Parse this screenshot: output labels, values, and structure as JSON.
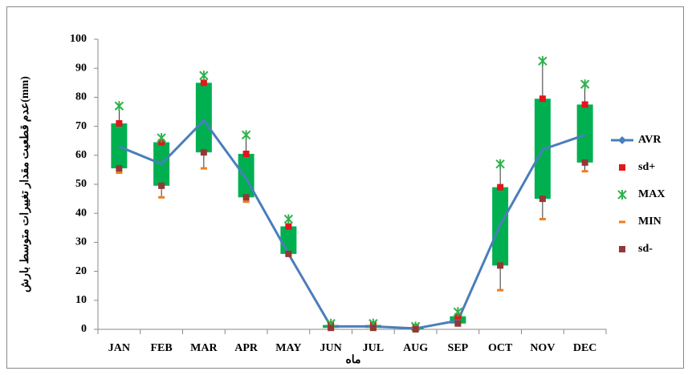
{
  "chart_data": {
    "type": "stock",
    "x_label": "ماه",
    "y_label": "عدم قطعیت مقدار تغییرات متوسط بارش(mm)",
    "categories": [
      "JAN",
      "FEB",
      "MAR",
      "APR",
      "MAY",
      "JUN",
      "JUL",
      "AUG",
      "SEP",
      "OCT",
      "NOV",
      "DEC"
    ],
    "ylim": [
      0,
      100
    ],
    "yticks": [
      0,
      10,
      20,
      30,
      40,
      50,
      60,
      70,
      80,
      90,
      100
    ],
    "grid": false,
    "box_color": "#00b050",
    "series": [
      {
        "name": "AVR",
        "color": "#4a7ebb",
        "marker": "line",
        "values": [
          63,
          57,
          72,
          52,
          26,
          1,
          1,
          0.3,
          3,
          36,
          62,
          67
        ]
      },
      {
        "name": "sd+",
        "color": "#e3161a",
        "marker": "square",
        "values": [
          71,
          64.5,
          85,
          60.5,
          35.5,
          1.5,
          1.5,
          0.8,
          4.5,
          49,
          79.5,
          77.5
        ]
      },
      {
        "name": "MAX",
        "color": "#2db34a",
        "marker": "asterisk",
        "values": [
          77,
          66,
          87.5,
          67,
          38,
          2,
          2,
          1,
          6,
          57,
          92.5,
          84.5
        ]
      },
      {
        "name": "MIN",
        "color": "#f07c1b",
        "marker": "dash",
        "values": [
          54,
          45.5,
          55.5,
          44,
          25.5,
          0,
          0,
          0,
          1.5,
          13.5,
          38,
          54.5
        ]
      },
      {
        "name": "sd-",
        "color": "#953735",
        "marker": "square",
        "values": [
          55.5,
          49.5,
          61,
          45.5,
          26,
          0.5,
          0.5,
          0,
          2,
          22,
          45,
          57.5
        ]
      }
    ]
  }
}
